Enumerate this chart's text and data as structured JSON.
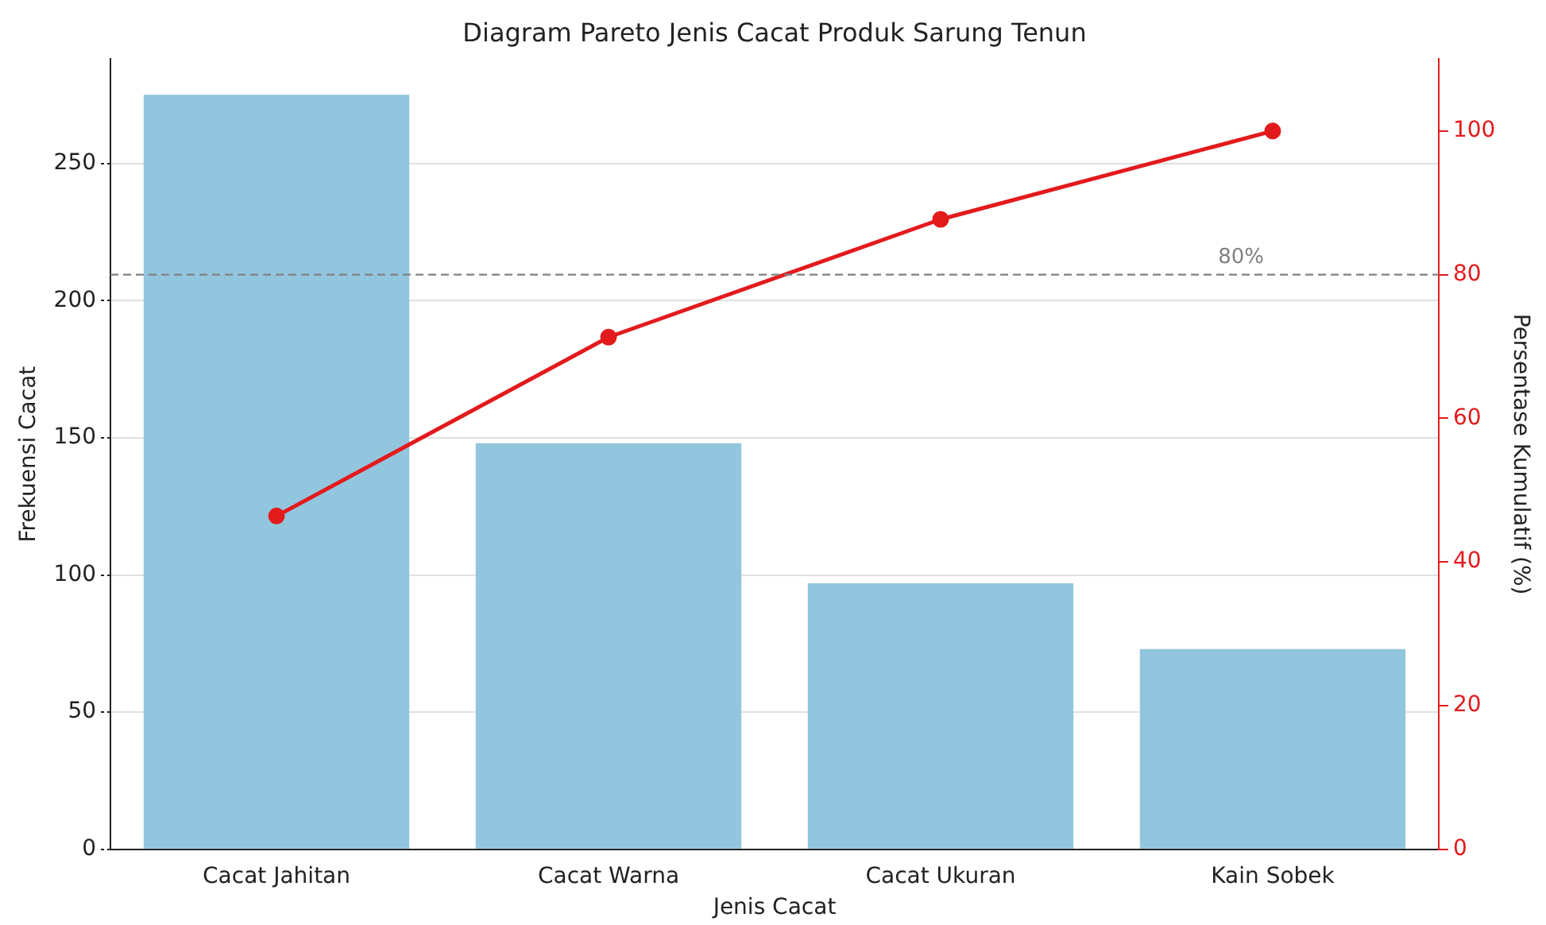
{
  "chart_data": {
    "type": "bar",
    "title": "Diagram Pareto Jenis Cacat Produk Sarung Tenun",
    "xlabel": "Jenis Cacat",
    "ylabel": "Frekuensi Cacat",
    "y2label": "Persentase Kumulatif (%)",
    "categories": [
      "Cacat Jahitan",
      "Cacat Warna",
      "Cacat Ukuran",
      "Kain Sobek"
    ],
    "series": [
      {
        "color": "#92c5de",
        "values": [
          275,
          148,
          97,
          73
        ]
      },
      {
        "type": "line",
        "axis": "y2",
        "color": "#e31a1c",
        "values": [
          46.4,
          71.3,
          87.7,
          100
        ]
      }
    ],
    "ylim": [
      0,
      288
    ],
    "yticks": [
      0,
      50,
      100,
      150,
      200,
      250
    ],
    "y2lim": [
      0,
      110
    ],
    "y2ticks": [
      0,
      20,
      40,
      60,
      80,
      100
    ],
    "grid": "y",
    "marker": "circle",
    "ref_lines": [
      {
        "axis": "y2",
        "value": 80,
        "label": "80%",
        "color": "#808080",
        "line_style": "dashed"
      }
    ]
  }
}
